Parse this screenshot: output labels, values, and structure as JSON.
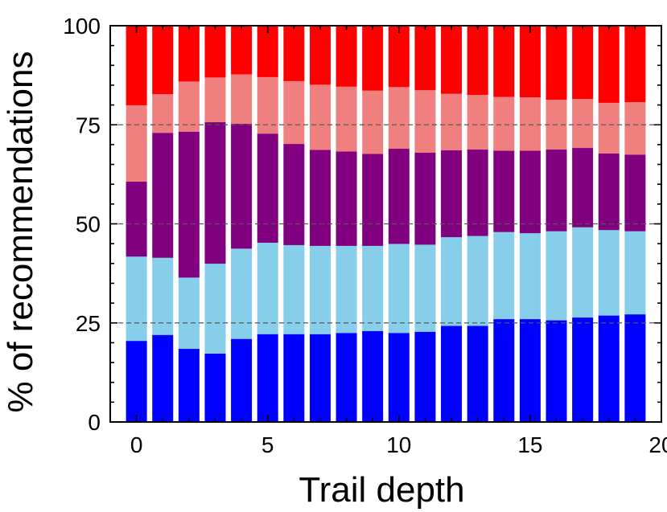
{
  "chart_data": {
    "type": "bar",
    "stacked": true,
    "title": "",
    "xlabel": "Trail depth",
    "ylabel": "% of recommendations",
    "xlim": [
      -1,
      20
    ],
    "ylim": [
      0,
      100
    ],
    "x_ticks": [
      0,
      5,
      10,
      15,
      20
    ],
    "y_ticks": [
      0,
      25,
      50,
      75,
      100
    ],
    "grid": "horizontal dashed at 25, 50, 75",
    "legend": "none",
    "x": [
      0,
      1,
      2,
      3,
      4,
      5,
      6,
      7,
      8,
      9,
      10,
      11,
      12,
      13,
      14,
      15,
      16,
      17,
      18,
      19
    ],
    "series": [
      {
        "color": "#0000ff",
        "values": [
          20.5,
          22.0,
          18.5,
          17.3,
          21.0,
          22.2,
          22.2,
          22.2,
          22.5,
          23.0,
          22.5,
          22.8,
          24.3,
          24.3,
          26.0,
          26.0,
          25.7,
          26.4,
          26.9,
          27.2
        ]
      },
      {
        "color": "#87ceeb",
        "values": [
          21.3,
          19.5,
          18.0,
          22.7,
          22.8,
          23.1,
          22.5,
          22.3,
          22.0,
          21.5,
          22.5,
          22.0,
          22.4,
          22.7,
          22.0,
          21.7,
          22.5,
          22.8,
          21.6,
          21.0
        ]
      },
      {
        "color": "#800080",
        "values": [
          18.9,
          31.5,
          36.8,
          35.7,
          31.5,
          27.5,
          25.5,
          24.2,
          23.8,
          23.2,
          24.0,
          23.2,
          21.9,
          21.8,
          20.5,
          20.8,
          20.6,
          20.0,
          19.3,
          19.3
        ]
      },
      {
        "color": "#f08080",
        "values": [
          19.3,
          9.8,
          12.7,
          11.3,
          12.5,
          14.3,
          15.9,
          16.5,
          16.4,
          16.0,
          15.6,
          15.8,
          14.3,
          13.8,
          13.6,
          13.5,
          12.6,
          12.4,
          12.8,
          13.3
        ]
      },
      {
        "color": "#ff0000",
        "values": [
          20.0,
          17.2,
          14.0,
          13.0,
          12.2,
          12.9,
          13.9,
          14.8,
          15.3,
          16.3,
          15.4,
          16.2,
          17.1,
          17.4,
          17.9,
          18.0,
          18.6,
          18.4,
          19.4,
          19.2
        ]
      }
    ]
  }
}
